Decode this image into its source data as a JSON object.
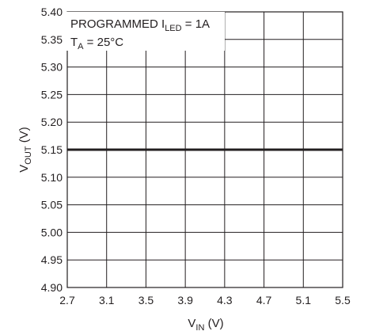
{
  "chart_data": {
    "type": "line",
    "xlabel": {
      "main": "V",
      "sub": "IN",
      "unit": " (V)"
    },
    "ylabel": {
      "main": "V",
      "sub": "OUT",
      "unit": " (V)"
    },
    "xlim": [
      2.7,
      5.5
    ],
    "ylim": [
      4.9,
      5.4
    ],
    "xticks": [
      "2.7",
      "3.1",
      "3.5",
      "3.9",
      "4.3",
      "4.7",
      "5.1",
      "5.5"
    ],
    "yticks": [
      "4.90",
      "4.95",
      "5.00",
      "5.05",
      "5.10",
      "5.15",
      "5.20",
      "5.25",
      "5.30",
      "5.35",
      "5.40"
    ],
    "grid": true,
    "annotation": {
      "line1": {
        "prefix": "PROGRAMMED I",
        "sub": "LED",
        "suffix": " = 1A"
      },
      "line2": {
        "prefix": "T",
        "sub": "A",
        "suffix": " = 25°C"
      }
    },
    "series": [
      {
        "x": [
          2.7,
          5.5
        ],
        "y": [
          5.15,
          5.15
        ]
      }
    ]
  },
  "colors": {
    "line": "#231f20",
    "grid": "#231f20",
    "background": "#ffffff"
  }
}
